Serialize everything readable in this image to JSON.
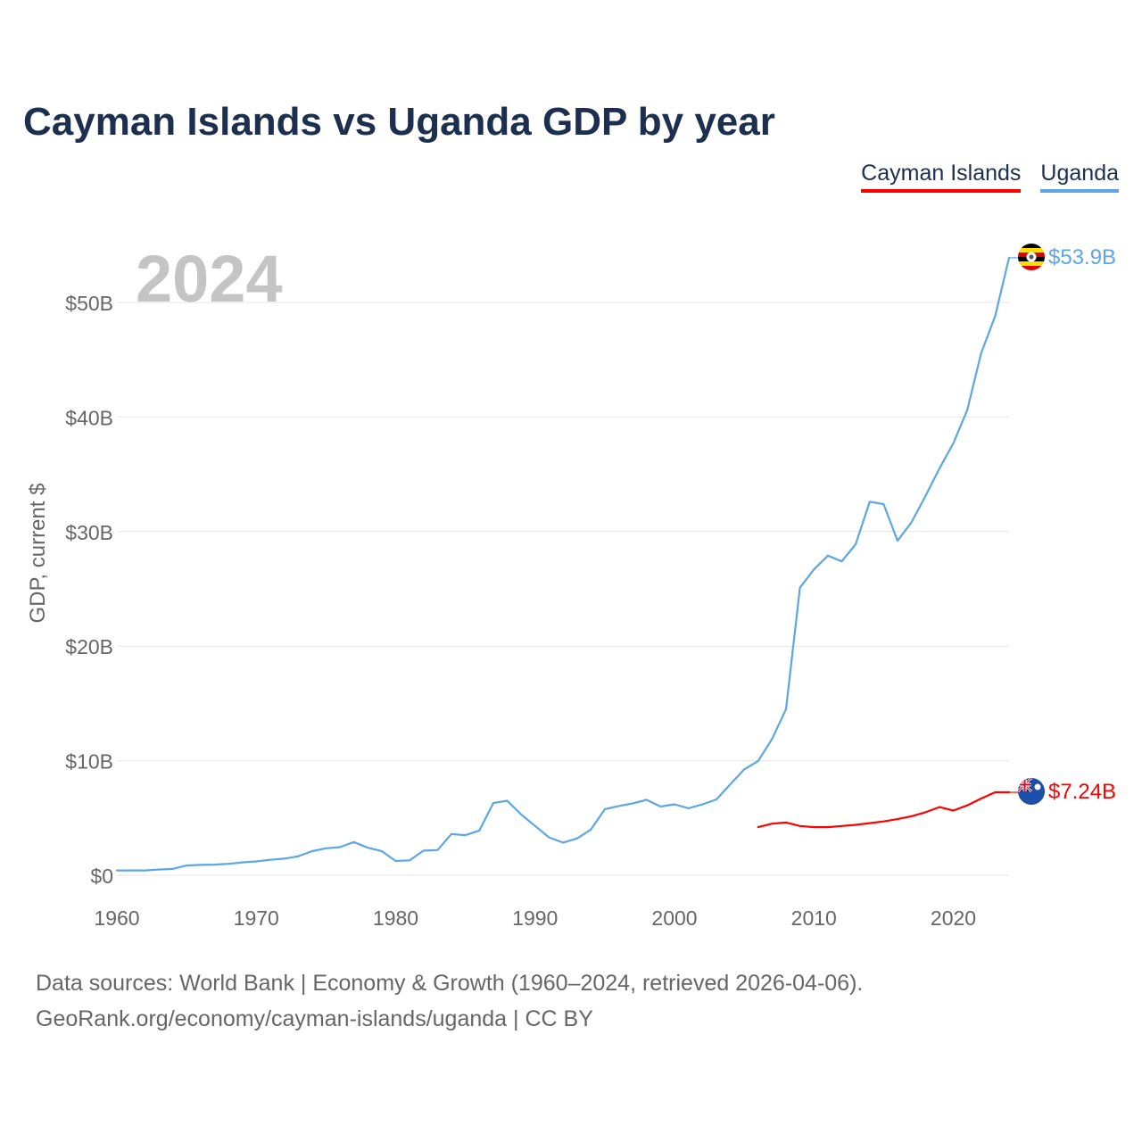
{
  "title": "Cayman Islands vs Uganda GDP by year",
  "legend": [
    {
      "label": "Cayman Islands",
      "color": "#ff0000"
    },
    {
      "label": "Uganda",
      "color": "#5da6e6"
    }
  ],
  "footer": {
    "line1": "Data sources: World Bank | Economy & Growth (1960–2024, retrieved 2026-04-06).",
    "line2": "GeoRank.org/economy/cayman-islands/uganda | CC BY"
  },
  "chart_data": {
    "type": "line",
    "title": "Cayman Islands vs Uganda GDP by year",
    "year_label": "2024",
    "ylabel": "GDP, current $",
    "xlabel": "",
    "xlim": [
      1960,
      2024
    ],
    "ylim": [
      0,
      55
    ],
    "unit": "billions USD",
    "x_ticks": [
      1960,
      1970,
      1980,
      1990,
      2000,
      2010,
      2020
    ],
    "x_tick_labels": [
      "1960",
      "1970",
      "1980",
      "1990",
      "2000",
      "2010",
      "2020"
    ],
    "y_ticks": [
      0,
      10,
      20,
      30,
      40,
      50
    ],
    "y_tick_labels": [
      "$0",
      "$10B",
      "$20B",
      "$30B",
      "$40B",
      "$50B"
    ],
    "grid": true,
    "series": [
      {
        "name": "Uganda",
        "color": "#5da6e6",
        "end_label": "$53.9B",
        "points": [
          [
            1960,
            0.42
          ],
          [
            1961,
            0.42
          ],
          [
            1962,
            0.42
          ],
          [
            1963,
            0.5
          ],
          [
            1964,
            0.55
          ],
          [
            1965,
            0.85
          ],
          [
            1966,
            0.9
          ],
          [
            1967,
            0.93
          ],
          [
            1968,
            1.0
          ],
          [
            1969,
            1.12
          ],
          [
            1970,
            1.21
          ],
          [
            1971,
            1.35
          ],
          [
            1972,
            1.45
          ],
          [
            1973,
            1.65
          ],
          [
            1974,
            2.1
          ],
          [
            1975,
            2.35
          ],
          [
            1976,
            2.45
          ],
          [
            1977,
            2.9
          ],
          [
            1978,
            2.4
          ],
          [
            1979,
            2.1
          ],
          [
            1980,
            1.25
          ],
          [
            1981,
            1.3
          ],
          [
            1982,
            2.15
          ],
          [
            1983,
            2.2
          ],
          [
            1984,
            3.6
          ],
          [
            1985,
            3.5
          ],
          [
            1986,
            3.9
          ],
          [
            1987,
            6.3
          ],
          [
            1988,
            6.5
          ],
          [
            1989,
            5.3
          ],
          [
            1990,
            4.3
          ],
          [
            1991,
            3.3
          ],
          [
            1992,
            2.85
          ],
          [
            1993,
            3.2
          ],
          [
            1994,
            3.99
          ],
          [
            1995,
            5.76
          ],
          [
            1996,
            6.04
          ],
          [
            1997,
            6.27
          ],
          [
            1998,
            6.58
          ],
          [
            1999,
            6.0
          ],
          [
            2000,
            6.19
          ],
          [
            2001,
            5.84
          ],
          [
            2002,
            6.18
          ],
          [
            2003,
            6.61
          ],
          [
            2004,
            7.94
          ],
          [
            2005,
            9.24
          ],
          [
            2006,
            9.98
          ],
          [
            2007,
            11.9
          ],
          [
            2008,
            14.5
          ],
          [
            2009,
            25.1
          ],
          [
            2010,
            26.7
          ],
          [
            2011,
            27.9
          ],
          [
            2012,
            27.4
          ],
          [
            2013,
            28.9
          ],
          [
            2014,
            32.6
          ],
          [
            2015,
            32.4
          ],
          [
            2016,
            29.2
          ],
          [
            2017,
            30.8
          ],
          [
            2018,
            33.1
          ],
          [
            2019,
            35.5
          ],
          [
            2020,
            37.7
          ],
          [
            2021,
            40.6
          ],
          [
            2022,
            45.6
          ],
          [
            2023,
            48.8
          ],
          [
            2024,
            53.9
          ]
        ]
      },
      {
        "name": "Cayman Islands",
        "color": "#ff0000",
        "end_label": "$7.24B",
        "points": [
          [
            2006,
            4.2
          ],
          [
            2007,
            4.5
          ],
          [
            2008,
            4.6
          ],
          [
            2009,
            4.3
          ],
          [
            2010,
            4.2
          ],
          [
            2011,
            4.2
          ],
          [
            2012,
            4.3
          ],
          [
            2013,
            4.4
          ],
          [
            2014,
            4.55
          ],
          [
            2015,
            4.7
          ],
          [
            2016,
            4.9
          ],
          [
            2017,
            5.15
          ],
          [
            2018,
            5.5
          ],
          [
            2019,
            5.95
          ],
          [
            2020,
            5.65
          ],
          [
            2021,
            6.1
          ],
          [
            2022,
            6.7
          ],
          [
            2023,
            7.24
          ],
          [
            2024,
            7.24
          ]
        ]
      }
    ]
  }
}
